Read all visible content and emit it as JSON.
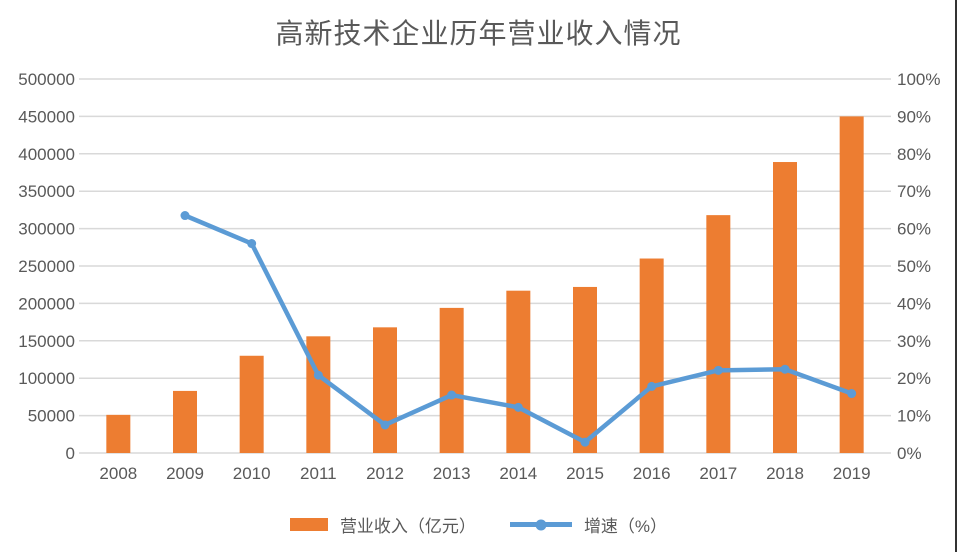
{
  "chart_data": {
    "type": "combo_bar_line",
    "title": "高新技术企业历年营业收入情况",
    "categories": [
      "2008",
      "2009",
      "2010",
      "2011",
      "2012",
      "2013",
      "2014",
      "2015",
      "2016",
      "2017",
      "2018",
      "2019"
    ],
    "series": [
      {
        "name": "营业收入（亿元）",
        "type": "bar",
        "axis": "left",
        "color": "#ED7D31",
        "values": [
          51000,
          83000,
          130000,
          156000,
          168000,
          194000,
          217000,
          222000,
          260000,
          318000,
          389000,
          450000
        ]
      },
      {
        "name": "增速（%）",
        "type": "line",
        "axis": "right",
        "color": "#5B9BD5",
        "values": [
          null,
          63.5,
          56.0,
          20.8,
          7.5,
          15.5,
          12.2,
          2.9,
          17.8,
          22.1,
          22.4,
          15.9
        ]
      }
    ],
    "left_axis": {
      "min": 0,
      "max": 500000,
      "step": 50000,
      "tick_labels": [
        "0",
        "50000",
        "100000",
        "150000",
        "200000",
        "250000",
        "300000",
        "350000",
        "400000",
        "450000",
        "500000"
      ]
    },
    "right_axis": {
      "min": 0,
      "max": 100,
      "step": 10,
      "tick_labels": [
        "0%",
        "10%",
        "20%",
        "30%",
        "40%",
        "50%",
        "60%",
        "70%",
        "80%",
        "90%",
        "100%"
      ]
    },
    "grid": true,
    "legend_position": "bottom"
  },
  "styles": {
    "background": "#FFFFFF",
    "grid_color": "#D9D9D9",
    "axis_text_color": "#595959",
    "title_color": "#595959",
    "right_border_color": "#333333"
  }
}
